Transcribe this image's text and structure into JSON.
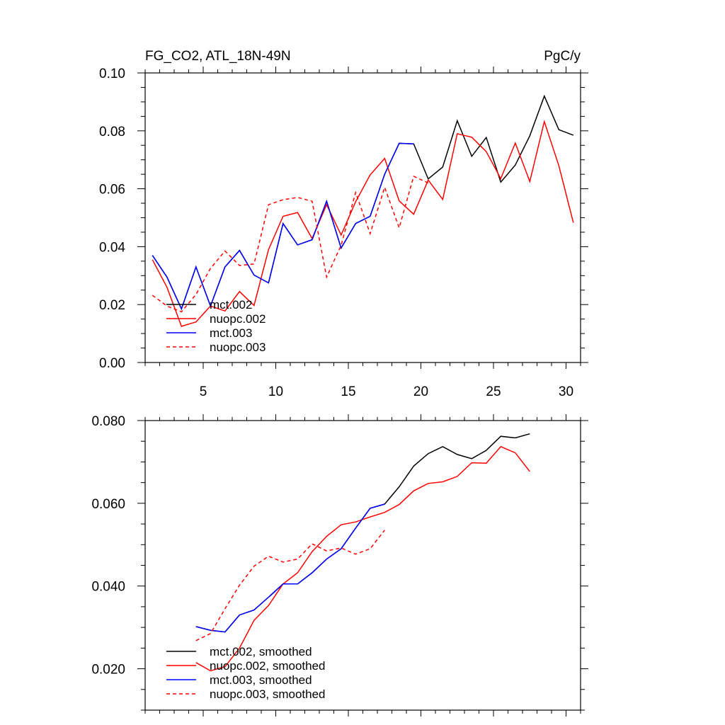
{
  "chart_data": [
    {
      "type": "line",
      "title": "FG_CO2, ATL_18N-49N",
      "units": "PgC/y",
      "xlim": [
        1,
        31
      ],
      "ylim": [
        0,
        0.1
      ],
      "x_ticks": [
        "5",
        "10",
        "15",
        "20",
        "25",
        "30"
      ],
      "y_ticks": [
        "0.00",
        "0.02",
        "0.04",
        "0.06",
        "0.08",
        "0.10"
      ],
      "legend_position": "lower-left",
      "series": [
        {
          "name": "mct.002",
          "color": "#000000",
          "dash": "solid",
          "x": [
            1.5,
            2.5,
            3.5,
            4.5,
            5.5,
            6.5,
            7.5,
            8.5,
            9.5,
            10.5,
            11.5,
            12.5,
            13.5,
            14.5,
            15.5,
            16.5,
            17.5,
            18.5,
            19.5,
            20.5,
            21.5,
            22.5,
            23.5,
            24.5,
            25.5,
            26.5,
            27.5,
            28.5,
            29.5,
            30.5
          ],
          "values": [
            0.037,
            0.0295,
            0.0185,
            0.033,
            0.0195,
            0.033,
            0.0387,
            0.0302,
            0.0275,
            0.048,
            0.0406,
            0.0424,
            0.0557,
            0.0395,
            0.048,
            0.0505,
            0.065,
            0.0757,
            0.0755,
            0.0634,
            0.0675,
            0.0835,
            0.0712,
            0.0777,
            0.0623,
            0.0682,
            0.0783,
            0.092,
            0.0804,
            0.0785
          ]
        },
        {
          "name": "nuopc.002",
          "color": "#ff0000",
          "dash": "solid",
          "x": [
            1.5,
            2.5,
            3.5,
            4.5,
            5.5,
            6.5,
            7.5,
            8.5,
            9.5,
            10.5,
            11.5,
            12.5,
            13.5,
            14.5,
            15.5,
            16.5,
            17.5,
            18.5,
            19.5,
            20.5,
            21.5,
            22.5,
            23.5,
            24.5,
            25.5,
            26.5,
            27.5,
            28.5,
            29.5,
            30.5
          ],
          "values": [
            0.0355,
            0.026,
            0.0125,
            0.014,
            0.0195,
            0.0178,
            0.0245,
            0.0197,
            0.039,
            0.0505,
            0.0518,
            0.0428,
            0.0545,
            0.044,
            0.0555,
            0.0648,
            0.0705,
            0.0558,
            0.0512,
            0.063,
            0.0563,
            0.079,
            0.0778,
            0.0728,
            0.0635,
            0.0758,
            0.0625,
            0.0832,
            0.068,
            0.0483
          ]
        },
        {
          "name": "mct.003",
          "color": "#0000ff",
          "dash": "solid",
          "x": [
            1.5,
            2.5,
            3.5,
            4.5,
            5.5,
            6.5,
            7.5,
            8.5,
            9.5,
            10.5,
            11.5,
            12.5,
            13.5,
            14.5,
            15.5,
            16.5,
            17.5,
            18.5,
            19.5
          ],
          "values": [
            0.037,
            0.0295,
            0.0185,
            0.033,
            0.0195,
            0.033,
            0.0387,
            0.0302,
            0.0275,
            0.048,
            0.0406,
            0.0424,
            0.0557,
            0.0395,
            0.048,
            0.0505,
            0.065,
            0.0757,
            0.0755
          ]
        },
        {
          "name": "nuopc.003",
          "color": "#ff0000",
          "dash": "dashed",
          "x": [
            1.5,
            2.5,
            3.5,
            4.5,
            5.5,
            6.5,
            7.5,
            8.5,
            9.5,
            10.5,
            11.5,
            12.5,
            13.5,
            14.5,
            15.5,
            16.5,
            17.5,
            18.5,
            19.5,
            20.5
          ],
          "values": [
            0.0232,
            0.0195,
            0.0175,
            0.0235,
            0.0325,
            0.0385,
            0.0335,
            0.034,
            0.0545,
            0.0562,
            0.057,
            0.0557,
            0.0295,
            0.0405,
            0.0587,
            0.0445,
            0.0605,
            0.0465,
            0.0643,
            0.062
          ]
        }
      ]
    },
    {
      "type": "line",
      "xlim": [
        1,
        31
      ],
      "ylim": [
        0.01,
        0.08
      ],
      "x_ticks": [],
      "y_ticks": [
        "0.020",
        "0.040",
        "0.060",
        "0.080"
      ],
      "legend_position": "lower-left",
      "series": [
        {
          "name": "mct.002, smoothed",
          "color": "#000000",
          "dash": "solid",
          "x": [
            4.5,
            5.5,
            6.5,
            7.5,
            8.5,
            9.5,
            10.5,
            11.5,
            12.5,
            13.5,
            14.5,
            15.5,
            16.5,
            17.5,
            18.5,
            19.5,
            20.5,
            21.5,
            22.5,
            23.5,
            24.5,
            25.5,
            26.5,
            27.5
          ],
          "values": [
            0.0302,
            0.0293,
            0.0289,
            0.033,
            0.0342,
            0.0373,
            0.0405,
            0.0405,
            0.0432,
            0.0465,
            0.049,
            0.054,
            0.0588,
            0.0598,
            0.064,
            0.069,
            0.072,
            0.0737,
            0.0718,
            0.0708,
            0.0728,
            0.0762,
            0.0758,
            0.0768
          ]
        },
        {
          "name": "nuopc.002, smoothed",
          "color": "#ff0000",
          "dash": "solid",
          "x": [
            4.5,
            5.5,
            6.5,
            7.5,
            8.5,
            9.5,
            10.5,
            11.5,
            12.5,
            13.5,
            14.5,
            15.5,
            16.5,
            17.5,
            18.5,
            19.5,
            20.5,
            21.5,
            22.5,
            23.5,
            24.5,
            25.5,
            26.5,
            27.5
          ],
          "values": [
            0.0215,
            0.0195,
            0.0205,
            0.025,
            0.0317,
            0.0353,
            0.0405,
            0.0432,
            0.0483,
            0.052,
            0.0548,
            0.0555,
            0.0567,
            0.0578,
            0.0597,
            0.063,
            0.0648,
            0.0652,
            0.0665,
            0.0698,
            0.0697,
            0.0737,
            0.0722,
            0.0677
          ]
        },
        {
          "name": "mct.003, smoothed",
          "color": "#0000ff",
          "dash": "solid",
          "x": [
            4.5,
            5.5,
            6.5,
            7.5,
            8.5,
            9.5,
            10.5,
            11.5,
            12.5,
            13.5,
            14.5,
            15.5,
            16.5,
            17.5
          ],
          "values": [
            0.0302,
            0.0293,
            0.0289,
            0.033,
            0.0342,
            0.0373,
            0.0405,
            0.0405,
            0.0432,
            0.0465,
            0.049,
            0.054,
            0.0588,
            0.0598
          ]
        },
        {
          "name": "nuopc.003, smoothed",
          "color": "#ff0000",
          "dash": "dashed",
          "x": [
            4.5,
            5.5,
            6.5,
            7.5,
            8.5,
            9.5,
            10.5,
            11.5,
            12.5,
            13.5,
            14.5,
            15.5,
            16.5,
            17.5
          ],
          "values": [
            0.0268,
            0.0285,
            0.0345,
            0.0402,
            0.0448,
            0.0472,
            0.0458,
            0.0465,
            0.0502,
            0.0485,
            0.0492,
            0.0477,
            0.049,
            0.0535
          ]
        }
      ]
    }
  ]
}
